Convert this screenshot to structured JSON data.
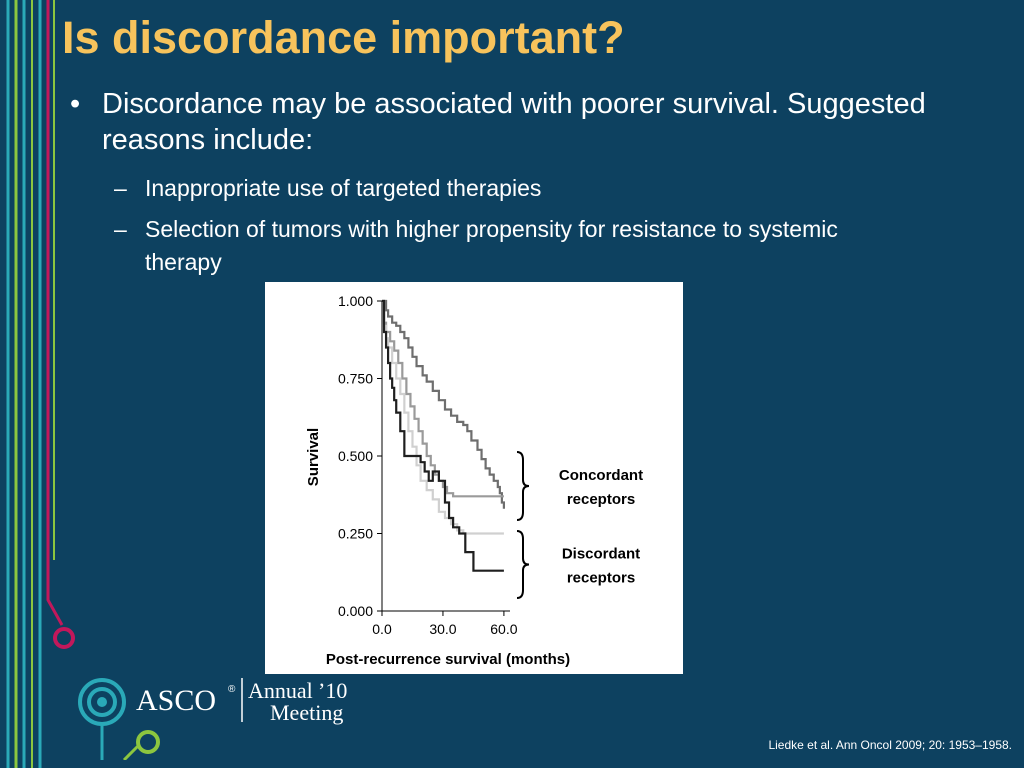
{
  "slide": {
    "title": "Is discordance important?",
    "bullet_mark": "•",
    "bullet_text": "Discordance may be associated with poorer survival. Suggested reasons include:",
    "sub_mark": "–",
    "sub_bullets": [
      "Inappropriate use of targeted therapies",
      "Selection of tumors with higher propensity for resistance to systemic therapy"
    ],
    "citation": "Liedke et al. Ann Oncol 2009; 20: 1953–1958."
  },
  "logo": {
    "asco_text": "ASCO",
    "reg_mark": "®",
    "annual_text": "Annual",
    "year_text": "’10",
    "meeting_text": "Meeting"
  },
  "colors": {
    "background": "#0d4160",
    "title": "#f7c35c",
    "text": "#ffffff",
    "deco_teal": "#2aa9b8",
    "deco_green": "#8cc63f",
    "deco_magenta": "#c2185b"
  },
  "chart_data": {
    "type": "line",
    "ylabel": "Survival",
    "xlabel": "Post-recurrence survival (months)",
    "xlim": [
      0,
      63
    ],
    "ylim": [
      0,
      1
    ],
    "x_ticks": [
      0,
      30,
      60
    ],
    "x_tick_labels": [
      "0.0",
      "30.0",
      "60.0"
    ],
    "y_ticks": [
      0,
      0.25,
      0.5,
      0.75,
      1
    ],
    "y_tick_labels": [
      "0.000",
      "0.250",
      "0.500",
      "0.750",
      "1.000"
    ],
    "annotations": [
      {
        "text_lines": [
          "Concordant",
          "receptors"
        ]
      },
      {
        "text_lines": [
          "Discordant",
          "receptors"
        ]
      }
    ],
    "series": [
      {
        "color": "#6e6e6e",
        "x": [
          0,
          2,
          3,
          5,
          7,
          9,
          11,
          13,
          15,
          17,
          20,
          22,
          25,
          28,
          31,
          34,
          37,
          40,
          42,
          44,
          47,
          49,
          51,
          53,
          55,
          57,
          58,
          59,
          60
        ],
        "y": [
          1,
          0.97,
          0.95,
          0.93,
          0.92,
          0.9,
          0.88,
          0.85,
          0.82,
          0.79,
          0.76,
          0.74,
          0.71,
          0.68,
          0.65,
          0.63,
          0.61,
          0.6,
          0.58,
          0.55,
          0.52,
          0.49,
          0.46,
          0.44,
          0.42,
          0.4,
          0.38,
          0.35,
          0.33
        ]
      },
      {
        "color": "#9a9a9a",
        "x": [
          0,
          1,
          2,
          4,
          6,
          8,
          10,
          12,
          14,
          16,
          18,
          20,
          22,
          24,
          26,
          28,
          30,
          32,
          35,
          60
        ],
        "y": [
          1,
          0.93,
          0.9,
          0.87,
          0.84,
          0.8,
          0.75,
          0.7,
          0.66,
          0.62,
          0.58,
          0.54,
          0.5,
          0.47,
          0.44,
          0.42,
          0.4,
          0.38,
          0.37,
          0.37
        ]
      },
      {
        "color": "#d0d0d0",
        "x": [
          0,
          1,
          2,
          3,
          5,
          7,
          9,
          11,
          13,
          15,
          17,
          19,
          22,
          25,
          28,
          31,
          34,
          37,
          40,
          60
        ],
        "y": [
          1,
          0.92,
          0.88,
          0.85,
          0.8,
          0.75,
          0.7,
          0.64,
          0.58,
          0.53,
          0.47,
          0.42,
          0.39,
          0.36,
          0.32,
          0.3,
          0.28,
          0.26,
          0.25,
          0.25
        ]
      },
      {
        "color": "#1f1f1f",
        "x": [
          0,
          1,
          2,
          3,
          4,
          5,
          6,
          7,
          9,
          11,
          13,
          16,
          19,
          21,
          23,
          25,
          28,
          31,
          33,
          35,
          38,
          41,
          45,
          60
        ],
        "y": [
          1,
          0.9,
          0.85,
          0.8,
          0.75,
          0.72,
          0.68,
          0.64,
          0.58,
          0.5,
          0.5,
          0.5,
          0.48,
          0.45,
          0.42,
          0.45,
          0.42,
          0.35,
          0.3,
          0.27,
          0.25,
          0.19,
          0.13,
          0.13
        ]
      }
    ]
  }
}
